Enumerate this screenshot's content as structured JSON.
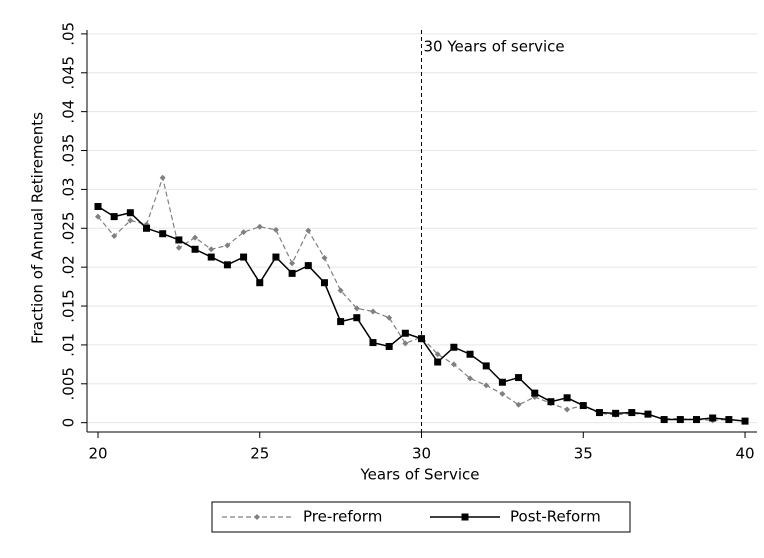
{
  "chart_data": {
    "type": "line",
    "x_label": "Years of Service",
    "y_label": "Fraction of Annual Retirements",
    "x": [
      20,
      20.5,
      21,
      21.5,
      22,
      22.5,
      23,
      23.5,
      24,
      24.5,
      25,
      25.5,
      26,
      26.5,
      27,
      27.5,
      28,
      28.5,
      29,
      29.5,
      30,
      30.5,
      31,
      31.5,
      32,
      32.5,
      33,
      33.5,
      34,
      34.5,
      35,
      35.5,
      36,
      36.5,
      37,
      37.5,
      38,
      38.5,
      39,
      39.5,
      40
    ],
    "series": [
      {
        "name": "Pre-reform",
        "color": "#808080",
        "dashed": true,
        "marker": "diamond",
        "values": [
          0.0265,
          0.024,
          0.026,
          0.0255,
          0.0315,
          0.0225,
          0.0238,
          0.0223,
          0.0228,
          0.0245,
          0.0252,
          0.0248,
          0.0205,
          0.0247,
          0.0212,
          0.017,
          0.0147,
          0.0143,
          0.0135,
          0.0102,
          0.011,
          0.0088,
          0.0075,
          0.0057,
          0.0048,
          0.0037,
          0.0023,
          0.0033,
          0.0025,
          0.0017,
          0.0022,
          0.0012,
          0.001,
          0.0012,
          0.001,
          0.0005,
          0.0005,
          0.0004,
          0.0003,
          0.0004,
          0.0002
        ]
      },
      {
        "name": "Post-Reform",
        "color": "#000000",
        "dashed": false,
        "marker": "square",
        "values": [
          0.0278,
          0.0265,
          0.027,
          0.025,
          0.0243,
          0.0235,
          0.0223,
          0.0213,
          0.0203,
          0.0213,
          0.018,
          0.0213,
          0.0192,
          0.0202,
          0.018,
          0.013,
          0.0135,
          0.0103,
          0.0098,
          0.0115,
          0.0108,
          0.0078,
          0.0097,
          0.0088,
          0.0073,
          0.0052,
          0.0058,
          0.0038,
          0.0027,
          0.0032,
          0.0022,
          0.0013,
          0.0012,
          0.0013,
          0.0011,
          0.0004,
          0.0004,
          0.0004,
          0.0006,
          0.0004,
          0.0002
        ]
      }
    ],
    "annotations": [
      {
        "x": 30,
        "text": "30 Years of service"
      }
    ],
    "xlim": [
      19.66,
      40.37
    ],
    "ylim": [
      -0.0012,
      0.0505
    ],
    "xticks": [
      20,
      25,
      30,
      35,
      40
    ],
    "yticks": [
      0,
      {
        "value": 0.005,
        "label": ".005"
      },
      {
        "value": 0.01,
        "label": ".01"
      },
      {
        "value": 0.015,
        "label": ".015"
      },
      {
        "value": 0.02,
        "label": ".02"
      },
      {
        "value": 0.025,
        "label": ".025"
      },
      {
        "value": 0.03,
        "label": ".03"
      },
      {
        "value": 0.035,
        "label": ".035"
      },
      {
        "value": 0.04,
        "label": ".04"
      },
      {
        "value": 0.045,
        "label": ".045"
      },
      {
        "value": 0.05,
        "label": ".05"
      }
    ],
    "grid": true,
    "legend": "bottom"
  }
}
